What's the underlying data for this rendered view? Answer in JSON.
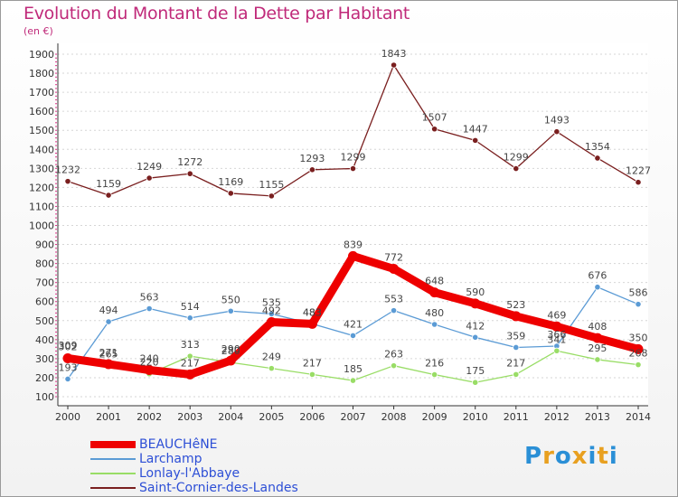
{
  "chart_data": {
    "type": "line",
    "title": "Evolution du Montant de la Dette par Habitant",
    "unit_label": "(en €)",
    "xlabel": "",
    "ylabel": "",
    "x": [
      "2000",
      "2001",
      "2002",
      "2003",
      "2004",
      "2005",
      "2006",
      "2007",
      "2008",
      "2009",
      "2010",
      "2011",
      "2012",
      "2013",
      "2014"
    ],
    "ylim": [
      100,
      1900
    ],
    "yticks": [
      100,
      200,
      300,
      400,
      500,
      600,
      700,
      800,
      900,
      1000,
      1100,
      1200,
      1300,
      1400,
      1500,
      1600,
      1700,
      1800,
      1900
    ],
    "series": [
      {
        "name": "BEAUCHêNE",
        "color": "#ee0000",
        "width": "thick",
        "values": [
          302,
          271,
          240,
          217,
          290,
          492,
          483,
          839,
          772,
          648,
          590,
          523,
          469,
          408,
          350
        ],
        "labels": [
          "302",
          "271",
          "240",
          "217",
          "290",
          "492",
          "483",
          "839",
          "772",
          "648",
          "590",
          "523",
          "469",
          "408",
          "350"
        ]
      },
      {
        "name": "Larchamp",
        "color": "#5b9bd5",
        "width": "thin",
        "values": [
          193,
          494,
          563,
          514,
          550,
          535,
          483,
          421,
          553,
          480,
          412,
          359,
          366,
          676,
          586
        ],
        "labels": [
          "193",
          "494",
          "563",
          "514",
          "550",
          "535",
          "483",
          "421",
          "553",
          "480",
          "412",
          "359",
          "366",
          "676",
          "586"
        ]
      },
      {
        "name": "Lonlay-l'Abbaye",
        "color": "#99dd66",
        "width": "thin",
        "values": [
          309,
          265,
          220,
          313,
          280,
          249,
          217,
          185,
          263,
          216,
          175,
          217,
          341,
          295,
          268
        ],
        "labels": [
          "309",
          "265",
          "220",
          "313",
          "280",
          "249",
          "217",
          "185",
          "263",
          "216",
          "175",
          "217",
          "341",
          "295",
          "268"
        ]
      },
      {
        "name": "Saint-Cornier-des-Landes",
        "color": "#7a1f1f",
        "width": "thin",
        "values": [
          1232,
          1159,
          1249,
          1272,
          1169,
          1155,
          1293,
          1299,
          1843,
          1507,
          1447,
          1299,
          1493,
          1354,
          1227
        ],
        "labels": [
          "1232",
          "1159",
          "1249",
          "1272",
          "1169",
          "1155",
          "1293",
          "1299",
          "1843",
          "1507",
          "1447",
          "1299",
          "1493",
          "1354",
          "1227"
        ]
      }
    ]
  },
  "legend": {
    "items": [
      "BEAUCHêNE",
      "Larchamp",
      "Lonlay-l'Abbaye",
      "Saint-Cornier-des-Landes"
    ]
  },
  "logo": {
    "letters": [
      "P",
      "r",
      "o",
      "x",
      "i",
      "t",
      "i"
    ],
    "colors": [
      "#2a8fd6",
      "#e8a020",
      "#2a8fd6",
      "#e8a020",
      "#2a8fd6",
      "#e8a020",
      "#2a8fd6"
    ]
  }
}
